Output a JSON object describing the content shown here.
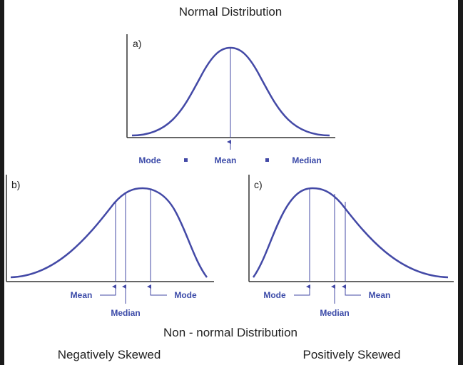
{
  "title": "Normal Distribution",
  "subtitle": "Non - normal Distribution",
  "colors": {
    "curve": "#4349a6",
    "label": "#3b4aa8",
    "axis": "#333333"
  },
  "panels": {
    "a": {
      "letter": "a)",
      "labels": {
        "mode": "Mode",
        "mean": "Mean",
        "median": "Median"
      }
    },
    "b": {
      "letter": "b)",
      "caption": "Negatively Skewed",
      "labels": {
        "mean": "Mean",
        "median": "Median",
        "mode": "Mode"
      }
    },
    "c": {
      "letter": "c)",
      "caption": "Positively Skewed",
      "labels": {
        "mode": "Mode",
        "median": "Median",
        "mean": "Mean"
      }
    }
  }
}
